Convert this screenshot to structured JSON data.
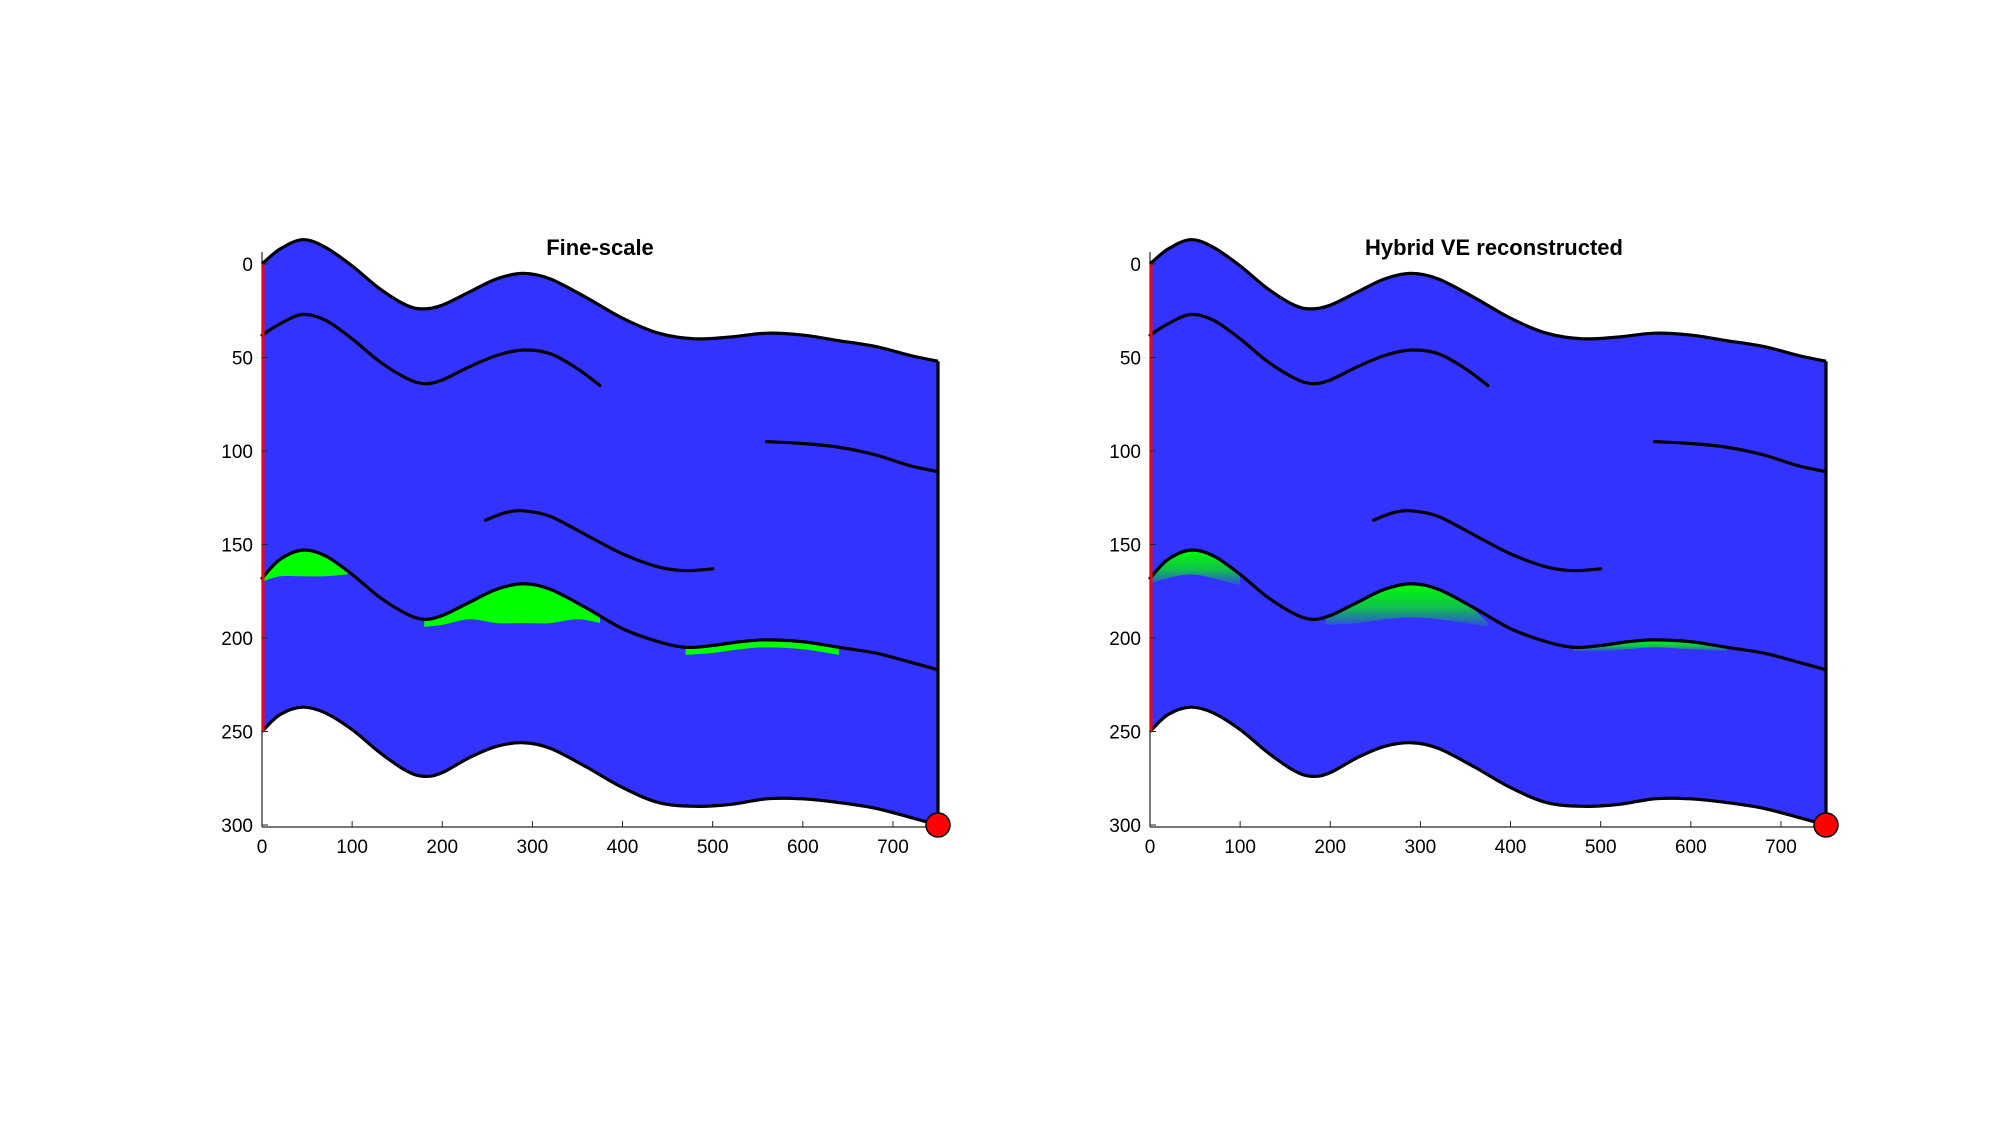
{
  "colors": {
    "background": "#ffffff",
    "domain_fill": "#3333ff",
    "plume": "#00ff00",
    "horizon": "#000000",
    "inflow_boundary": "#ff0000",
    "well_marker": "#ff0000"
  },
  "chart_data": [
    {
      "type": "area",
      "title": "Fine-scale",
      "xlabel": "",
      "ylabel": "",
      "xlim": [
        0,
        750
      ],
      "ylim": [
        300,
        0
      ],
      "y_reversed": true,
      "grid": false,
      "xticks": [
        0,
        100,
        200,
        300,
        400,
        500,
        600,
        700
      ],
      "yticks": [
        0,
        50,
        100,
        150,
        200,
        250,
        300
      ],
      "plume_style": "sharp",
      "top_surface": [
        [
          0,
          0
        ],
        [
          20,
          -8
        ],
        [
          45,
          -13
        ],
        [
          70,
          -9
        ],
        [
          100,
          1
        ],
        [
          130,
          13
        ],
        [
          160,
          22
        ],
        [
          180,
          24
        ],
        [
          200,
          22
        ],
        [
          230,
          15
        ],
        [
          260,
          8
        ],
        [
          290,
          5
        ],
        [
          320,
          8
        ],
        [
          360,
          18
        ],
        [
          400,
          29
        ],
        [
          440,
          37
        ],
        [
          480,
          40
        ],
        [
          520,
          39
        ],
        [
          560,
          37
        ],
        [
          600,
          38
        ],
        [
          640,
          41
        ],
        [
          680,
          44
        ],
        [
          720,
          49
        ],
        [
          750,
          52
        ]
      ],
      "bottom_surface": [
        [
          0,
          250
        ],
        [
          20,
          241
        ],
        [
          45,
          237
        ],
        [
          70,
          240
        ],
        [
          100,
          249
        ],
        [
          130,
          261
        ],
        [
          160,
          271
        ],
        [
          180,
          274
        ],
        [
          200,
          272
        ],
        [
          230,
          264
        ],
        [
          260,
          258
        ],
        [
          290,
          256
        ],
        [
          320,
          259
        ],
        [
          360,
          269
        ],
        [
          400,
          280
        ],
        [
          440,
          288
        ],
        [
          480,
          290
        ],
        [
          520,
          289
        ],
        [
          560,
          286
        ],
        [
          600,
          286
        ],
        [
          640,
          288
        ],
        [
          680,
          291
        ],
        [
          720,
          296
        ],
        [
          750,
          300
        ]
      ],
      "horizons": [
        [
          [
            0,
            38
          ],
          [
            20,
            32
          ],
          [
            45,
            27
          ],
          [
            70,
            30
          ],
          [
            100,
            40
          ],
          [
            130,
            52
          ],
          [
            160,
            61
          ],
          [
            180,
            64
          ],
          [
            200,
            62
          ],
          [
            230,
            55
          ],
          [
            260,
            49
          ],
          [
            290,
            46
          ],
          [
            320,
            48
          ],
          [
            350,
            56
          ],
          [
            375,
            65
          ]
        ],
        [
          [
            560,
            95
          ],
          [
            600,
            96
          ],
          [
            640,
            98
          ],
          [
            680,
            102
          ],
          [
            720,
            108
          ],
          [
            750,
            111
          ]
        ],
        [
          [
            248,
            137
          ],
          [
            270,
            133
          ],
          [
            290,
            132
          ],
          [
            320,
            135
          ],
          [
            360,
            145
          ],
          [
            400,
            155
          ],
          [
            440,
            162
          ],
          [
            470,
            164
          ],
          [
            500,
            163
          ]
        ],
        [
          [
            0,
            168
          ],
          [
            20,
            158
          ],
          [
            45,
            153
          ],
          [
            70,
            156
          ],
          [
            100,
            166
          ],
          [
            130,
            178
          ],
          [
            160,
            187
          ],
          [
            180,
            190
          ],
          [
            200,
            188
          ],
          [
            230,
            181
          ],
          [
            260,
            174
          ],
          [
            290,
            171
          ],
          [
            320,
            174
          ],
          [
            360,
            184
          ],
          [
            400,
            195
          ],
          [
            440,
            202
          ],
          [
            470,
            205
          ],
          [
            500,
            204
          ],
          [
            530,
            202
          ],
          [
            560,
            201
          ],
          [
            600,
            202
          ],
          [
            640,
            205
          ],
          [
            680,
            208
          ],
          [
            720,
            213
          ],
          [
            750,
            217
          ]
        ]
      ],
      "plumes": [
        {
          "x_start": 0,
          "x_end": 95,
          "top": [
            [
              0,
              168
            ],
            [
              20,
              158
            ],
            [
              45,
              153
            ],
            [
              70,
              156
            ],
            [
              95,
              164
            ]
          ],
          "base": [
            [
              0,
              170
            ],
            [
              20,
              167
            ],
            [
              45,
              167
            ],
            [
              70,
              167
            ],
            [
              95,
              166
            ]
          ]
        },
        {
          "x_start": 180,
          "x_end": 375,
          "top": [
            [
              180,
              190
            ],
            [
              200,
              188
            ],
            [
              230,
              181
            ],
            [
              260,
              174
            ],
            [
              290,
              171
            ],
            [
              320,
              174
            ],
            [
              350,
              181
            ],
            [
              375,
              188
            ]
          ],
          "base": [
            [
              180,
              194
            ],
            [
              200,
              193
            ],
            [
              230,
              190
            ],
            [
              260,
              192
            ],
            [
              290,
              192
            ],
            [
              320,
              192
            ],
            [
              350,
              190
            ],
            [
              375,
              192
            ]
          ]
        },
        {
          "x_start": 470,
          "x_end": 640,
          "top": [
            [
              470,
              205
            ],
            [
              500,
              204
            ],
            [
              530,
              202
            ],
            [
              560,
              201
            ],
            [
              600,
              202
            ],
            [
              640,
              205
            ]
          ],
          "base": [
            [
              470,
              209
            ],
            [
              500,
              208
            ],
            [
              530,
              206
            ],
            [
              560,
              205
            ],
            [
              600,
              206
            ],
            [
              640,
              209
            ]
          ]
        }
      ],
      "inflow_boundary": [
        [
          0,
          0
        ],
        [
          0,
          250
        ]
      ],
      "well": [
        750,
        300
      ]
    },
    {
      "type": "area",
      "title": "Hybrid VE reconstructed",
      "xlabel": "",
      "ylabel": "",
      "xlim": [
        0,
        750
      ],
      "ylim": [
        300,
        0
      ],
      "y_reversed": true,
      "grid": false,
      "xticks": [
        0,
        100,
        200,
        300,
        400,
        500,
        600,
        700
      ],
      "yticks": [
        0,
        50,
        100,
        150,
        200,
        250,
        300
      ],
      "plume_style": "graded",
      "top_surface": [
        [
          0,
          0
        ],
        [
          20,
          -8
        ],
        [
          45,
          -13
        ],
        [
          70,
          -9
        ],
        [
          100,
          1
        ],
        [
          130,
          13
        ],
        [
          160,
          22
        ],
        [
          180,
          24
        ],
        [
          200,
          22
        ],
        [
          230,
          15
        ],
        [
          260,
          8
        ],
        [
          290,
          5
        ],
        [
          320,
          8
        ],
        [
          360,
          18
        ],
        [
          400,
          29
        ],
        [
          440,
          37
        ],
        [
          480,
          40
        ],
        [
          520,
          39
        ],
        [
          560,
          37
        ],
        [
          600,
          38
        ],
        [
          640,
          41
        ],
        [
          680,
          44
        ],
        [
          720,
          49
        ],
        [
          750,
          52
        ]
      ],
      "bottom_surface": [
        [
          0,
          250
        ],
        [
          20,
          241
        ],
        [
          45,
          237
        ],
        [
          70,
          240
        ],
        [
          100,
          249
        ],
        [
          130,
          261
        ],
        [
          160,
          271
        ],
        [
          180,
          274
        ],
        [
          200,
          272
        ],
        [
          230,
          264
        ],
        [
          260,
          258
        ],
        [
          290,
          256
        ],
        [
          320,
          259
        ],
        [
          360,
          269
        ],
        [
          400,
          280
        ],
        [
          440,
          288
        ],
        [
          480,
          290
        ],
        [
          520,
          289
        ],
        [
          560,
          286
        ],
        [
          600,
          286
        ],
        [
          640,
          288
        ],
        [
          680,
          291
        ],
        [
          720,
          296
        ],
        [
          750,
          300
        ]
      ],
      "horizons": [
        [
          [
            0,
            38
          ],
          [
            20,
            32
          ],
          [
            45,
            27
          ],
          [
            70,
            30
          ],
          [
            100,
            40
          ],
          [
            130,
            52
          ],
          [
            160,
            61
          ],
          [
            180,
            64
          ],
          [
            200,
            62
          ],
          [
            230,
            55
          ],
          [
            260,
            49
          ],
          [
            290,
            46
          ],
          [
            320,
            48
          ],
          [
            350,
            56
          ],
          [
            375,
            65
          ]
        ],
        [
          [
            560,
            95
          ],
          [
            600,
            96
          ],
          [
            640,
            98
          ],
          [
            680,
            102
          ],
          [
            720,
            108
          ],
          [
            750,
            111
          ]
        ],
        [
          [
            248,
            137
          ],
          [
            270,
            133
          ],
          [
            290,
            132
          ],
          [
            320,
            135
          ],
          [
            360,
            145
          ],
          [
            400,
            155
          ],
          [
            440,
            162
          ],
          [
            470,
            164
          ],
          [
            500,
            163
          ]
        ],
        [
          [
            0,
            168
          ],
          [
            20,
            158
          ],
          [
            45,
            153
          ],
          [
            70,
            156
          ],
          [
            100,
            166
          ],
          [
            130,
            178
          ],
          [
            160,
            187
          ],
          [
            180,
            190
          ],
          [
            200,
            188
          ],
          [
            230,
            181
          ],
          [
            260,
            174
          ],
          [
            290,
            171
          ],
          [
            320,
            174
          ],
          [
            360,
            184
          ],
          [
            400,
            195
          ],
          [
            440,
            202
          ],
          [
            470,
            205
          ],
          [
            500,
            204
          ],
          [
            530,
            202
          ],
          [
            560,
            201
          ],
          [
            600,
            202
          ],
          [
            640,
            205
          ],
          [
            680,
            208
          ],
          [
            720,
            213
          ],
          [
            750,
            217
          ]
        ]
      ],
      "plumes": [
        {
          "x_start": 0,
          "x_end": 100,
          "top": [
            [
              0,
              168
            ],
            [
              20,
              158
            ],
            [
              45,
              153
            ],
            [
              70,
              156
            ],
            [
              100,
              166
            ]
          ],
          "base": [
            [
              0,
              171
            ],
            [
              20,
              168
            ],
            [
              45,
              166
            ],
            [
              70,
              168
            ],
            [
              100,
              172
            ]
          ]
        },
        {
          "x_start": 195,
          "x_end": 375,
          "top": [
            [
              195,
              189
            ],
            [
              230,
              181
            ],
            [
              260,
              174
            ],
            [
              290,
              171
            ],
            [
              320,
              174
            ],
            [
              350,
              181
            ],
            [
              375,
              192
            ]
          ],
          "base": [
            [
              195,
              193
            ],
            [
              230,
              192
            ],
            [
              260,
              190
            ],
            [
              290,
              189
            ],
            [
              320,
              190
            ],
            [
              350,
              192
            ],
            [
              375,
              194
            ]
          ]
        },
        {
          "x_start": 470,
          "x_end": 640,
          "top": [
            [
              470,
              205
            ],
            [
              500,
              204
            ],
            [
              530,
              202
            ],
            [
              560,
              201
            ],
            [
              600,
              202
            ],
            [
              640,
              205
            ]
          ],
          "base": [
            [
              470,
              207
            ],
            [
              500,
              207
            ],
            [
              530,
              206
            ],
            [
              560,
              205
            ],
            [
              600,
              206
            ],
            [
              640,
              207
            ]
          ]
        }
      ],
      "inflow_boundary": [
        [
          0,
          0
        ],
        [
          0,
          250
        ]
      ],
      "well": [
        750,
        300
      ]
    }
  ]
}
